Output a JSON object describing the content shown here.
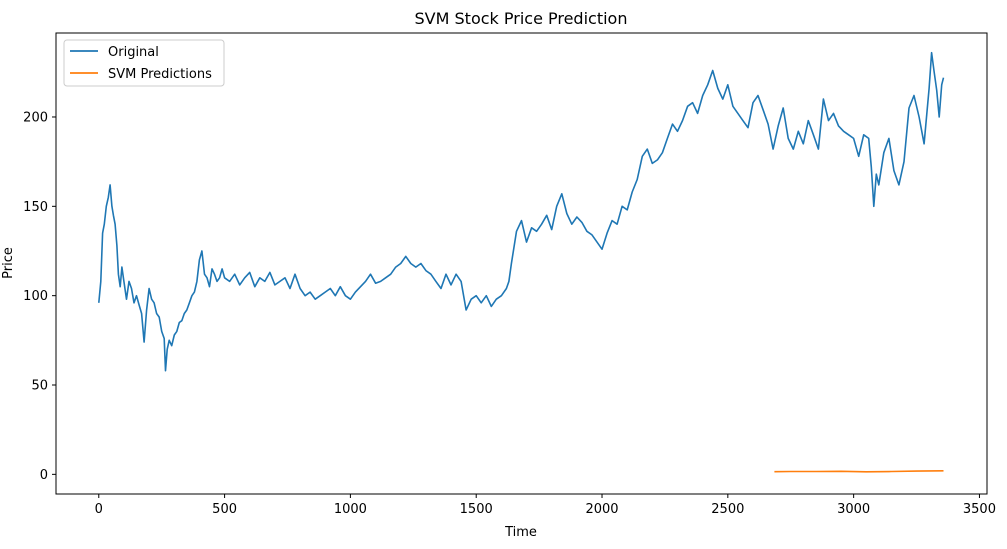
{
  "chart_data": {
    "type": "line",
    "title": "SVM Stock Price Prediction",
    "xlabel": "Time",
    "ylabel": "Price",
    "xlim": [
      -170,
      3530
    ],
    "ylim": [
      -11,
      247
    ],
    "xticks": [
      0,
      500,
      1000,
      1500,
      2000,
      2500,
      3000,
      3500
    ],
    "yticks": [
      0,
      50,
      100,
      150,
      200
    ],
    "grid": false,
    "legend_position": "upper-left",
    "series": [
      {
        "name": "Original",
        "color": "#1f77b4",
        "points": [
          [
            0,
            96
          ],
          [
            8,
            108
          ],
          [
            15,
            135
          ],
          [
            22,
            140
          ],
          [
            30,
            150
          ],
          [
            38,
            155
          ],
          [
            45,
            162
          ],
          [
            52,
            150
          ],
          [
            58,
            145
          ],
          [
            65,
            140
          ],
          [
            72,
            128
          ],
          [
            78,
            112
          ],
          [
            85,
            105
          ],
          [
            92,
            116
          ],
          [
            100,
            108
          ],
          [
            110,
            98
          ],
          [
            120,
            108
          ],
          [
            130,
            104
          ],
          [
            140,
            96
          ],
          [
            150,
            100
          ],
          [
            160,
            95
          ],
          [
            170,
            90
          ],
          [
            180,
            74
          ],
          [
            190,
            92
          ],
          [
            200,
            104
          ],
          [
            210,
            98
          ],
          [
            220,
            96
          ],
          [
            230,
            90
          ],
          [
            240,
            88
          ],
          [
            250,
            80
          ],
          [
            260,
            76
          ],
          [
            265,
            58
          ],
          [
            272,
            70
          ],
          [
            280,
            75
          ],
          [
            290,
            72
          ],
          [
            300,
            78
          ],
          [
            310,
            80
          ],
          [
            320,
            85
          ],
          [
            330,
            86
          ],
          [
            340,
            90
          ],
          [
            350,
            92
          ],
          [
            360,
            96
          ],
          [
            370,
            100
          ],
          [
            380,
            102
          ],
          [
            390,
            108
          ],
          [
            400,
            120
          ],
          [
            410,
            125
          ],
          [
            420,
            112
          ],
          [
            430,
            110
          ],
          [
            440,
            105
          ],
          [
            450,
            115
          ],
          [
            460,
            112
          ],
          [
            470,
            108
          ],
          [
            480,
            110
          ],
          [
            490,
            115
          ],
          [
            500,
            110
          ],
          [
            520,
            108
          ],
          [
            540,
            112
          ],
          [
            560,
            106
          ],
          [
            580,
            110
          ],
          [
            600,
            113
          ],
          [
            620,
            105
          ],
          [
            640,
            110
          ],
          [
            660,
            108
          ],
          [
            680,
            113
          ],
          [
            700,
            106
          ],
          [
            720,
            108
          ],
          [
            740,
            110
          ],
          [
            760,
            104
          ],
          [
            780,
            112
          ],
          [
            800,
            104
          ],
          [
            820,
            100
          ],
          [
            840,
            102
          ],
          [
            860,
            98
          ],
          [
            880,
            100
          ],
          [
            900,
            102
          ],
          [
            920,
            104
          ],
          [
            940,
            100
          ],
          [
            960,
            105
          ],
          [
            980,
            100
          ],
          [
            1000,
            98
          ],
          [
            1020,
            102
          ],
          [
            1040,
            105
          ],
          [
            1060,
            108
          ],
          [
            1080,
            112
          ],
          [
            1100,
            107
          ],
          [
            1120,
            108
          ],
          [
            1140,
            110
          ],
          [
            1160,
            112
          ],
          [
            1180,
            116
          ],
          [
            1200,
            118
          ],
          [
            1220,
            122
          ],
          [
            1240,
            118
          ],
          [
            1260,
            116
          ],
          [
            1280,
            118
          ],
          [
            1300,
            114
          ],
          [
            1320,
            112
          ],
          [
            1340,
            108
          ],
          [
            1360,
            104
          ],
          [
            1380,
            112
          ],
          [
            1400,
            106
          ],
          [
            1420,
            112
          ],
          [
            1440,
            108
          ],
          [
            1460,
            92
          ],
          [
            1480,
            98
          ],
          [
            1500,
            100
          ],
          [
            1520,
            96
          ],
          [
            1540,
            100
          ],
          [
            1560,
            94
          ],
          [
            1580,
            98
          ],
          [
            1600,
            100
          ],
          [
            1620,
            104
          ],
          [
            1630,
            108
          ],
          [
            1640,
            118
          ],
          [
            1660,
            136
          ],
          [
            1680,
            142
          ],
          [
            1700,
            130
          ],
          [
            1720,
            138
          ],
          [
            1740,
            136
          ],
          [
            1760,
            140
          ],
          [
            1780,
            145
          ],
          [
            1800,
            137
          ],
          [
            1820,
            150
          ],
          [
            1840,
            157
          ],
          [
            1860,
            146
          ],
          [
            1880,
            140
          ],
          [
            1900,
            144
          ],
          [
            1920,
            141
          ],
          [
            1940,
            136
          ],
          [
            1960,
            134
          ],
          [
            1980,
            130
          ],
          [
            2000,
            126
          ],
          [
            2020,
            135
          ],
          [
            2040,
            142
          ],
          [
            2060,
            140
          ],
          [
            2080,
            150
          ],
          [
            2100,
            148
          ],
          [
            2120,
            158
          ],
          [
            2140,
            165
          ],
          [
            2160,
            178
          ],
          [
            2180,
            182
          ],
          [
            2200,
            174
          ],
          [
            2220,
            176
          ],
          [
            2240,
            180
          ],
          [
            2260,
            188
          ],
          [
            2280,
            196
          ],
          [
            2300,
            192
          ],
          [
            2320,
            198
          ],
          [
            2340,
            206
          ],
          [
            2360,
            208
          ],
          [
            2380,
            202
          ],
          [
            2400,
            212
          ],
          [
            2420,
            218
          ],
          [
            2440,
            226
          ],
          [
            2460,
            216
          ],
          [
            2480,
            210
          ],
          [
            2500,
            218
          ],
          [
            2520,
            206
          ],
          [
            2540,
            202
          ],
          [
            2560,
            198
          ],
          [
            2580,
            194
          ],
          [
            2600,
            208
          ],
          [
            2620,
            212
          ],
          [
            2640,
            204
          ],
          [
            2660,
            196
          ],
          [
            2680,
            182
          ],
          [
            2700,
            195
          ],
          [
            2720,
            205
          ],
          [
            2740,
            188
          ],
          [
            2760,
            182
          ],
          [
            2780,
            192
          ],
          [
            2800,
            185
          ],
          [
            2820,
            198
          ],
          [
            2840,
            190
          ],
          [
            2860,
            182
          ],
          [
            2880,
            210
          ],
          [
            2900,
            198
          ],
          [
            2920,
            202
          ],
          [
            2940,
            195
          ],
          [
            2960,
            192
          ],
          [
            2980,
            190
          ],
          [
            3000,
            188
          ],
          [
            3020,
            178
          ],
          [
            3040,
            190
          ],
          [
            3060,
            188
          ],
          [
            3070,
            172
          ],
          [
            3080,
            150
          ],
          [
            3090,
            168
          ],
          [
            3100,
            162
          ],
          [
            3120,
            180
          ],
          [
            3140,
            188
          ],
          [
            3160,
            170
          ],
          [
            3180,
            162
          ],
          [
            3200,
            175
          ],
          [
            3220,
            205
          ],
          [
            3240,
            212
          ],
          [
            3260,
            200
          ],
          [
            3280,
            185
          ],
          [
            3300,
            216
          ],
          [
            3310,
            236
          ],
          [
            3320,
            225
          ],
          [
            3330,
            215
          ],
          [
            3340,
            200
          ],
          [
            3350,
            218
          ],
          [
            3357,
            222
          ]
        ]
      },
      {
        "name": "SVM Predictions",
        "color": "#ff7f0e",
        "points": [
          [
            2685,
            1.5
          ],
          [
            2750,
            1.6
          ],
          [
            2850,
            1.6
          ],
          [
            2950,
            1.7
          ],
          [
            3050,
            1.4
          ],
          [
            3150,
            1.6
          ],
          [
            3250,
            1.8
          ],
          [
            3357,
            2.0
          ]
        ]
      }
    ]
  }
}
